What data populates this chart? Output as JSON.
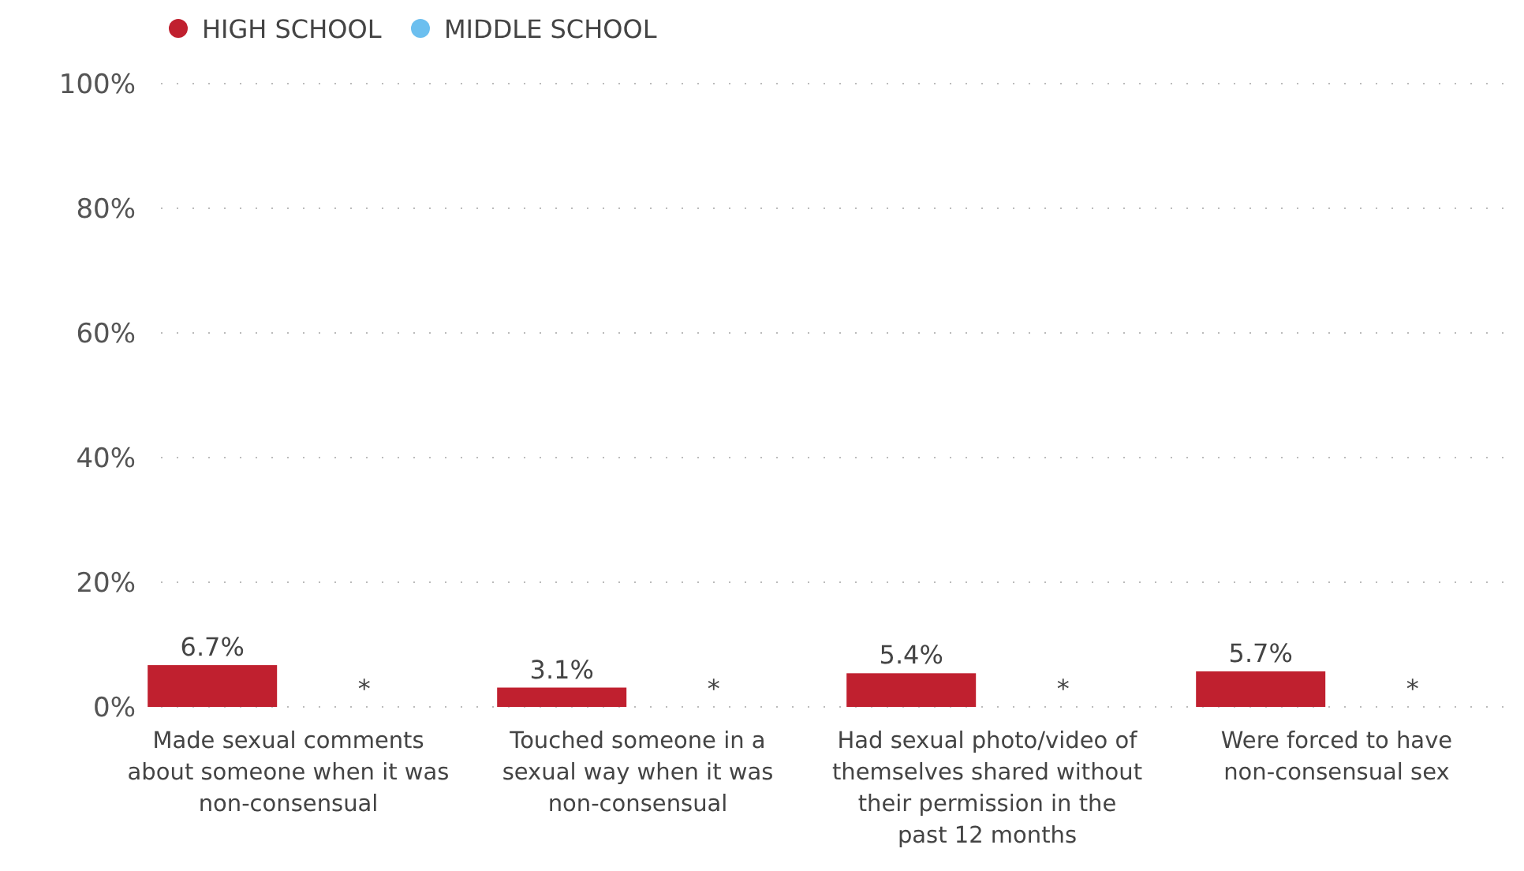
{
  "chart_data": {
    "type": "bar",
    "categories": [
      "Made sexual comments about someone when it was non-consensual",
      "Touched someone in a sexual way when it was non-consensual",
      "Had sexual photo/video of themselves shared without their permission in the past 12 months",
      "Were forced to have non-consensual sex"
    ],
    "series": [
      {
        "name": "HIGH SCHOOL",
        "color": "#c0202f",
        "values": [
          6.7,
          3.1,
          5.4,
          5.7
        ],
        "value_labels": [
          "6.7%",
          "3.1%",
          "5.4%",
          "5.7%"
        ]
      },
      {
        "name": "MIDDLE SCHOOL",
        "color": "#6cbfef",
        "values": [
          null,
          null,
          null,
          null
        ],
        "value_labels": [
          "*",
          "*",
          "*",
          "*"
        ]
      }
    ],
    "ylim": [
      0,
      100
    ],
    "yticks": [
      {
        "value": 0,
        "label": "0%"
      },
      {
        "value": 20,
        "label": "20%"
      },
      {
        "value": 40,
        "label": "40%"
      },
      {
        "value": 60,
        "label": "60%"
      },
      {
        "value": 80,
        "label": "80%"
      },
      {
        "value": 100,
        "label": "100%"
      }
    ],
    "grid": "y",
    "legend": "top left"
  }
}
